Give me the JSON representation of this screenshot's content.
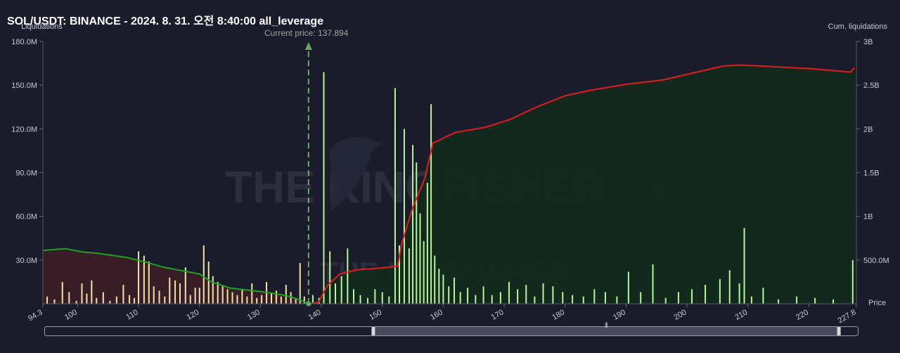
{
  "header": {
    "title": "SOL/USDT: BINANCE - 2024. 8. 31. 오전 8:40:00 all_leverage"
  },
  "watermark": {
    "brand": "THE KINGFISHER",
    "suffix": ".IO"
  },
  "colors": {
    "background": "#1b1c2b",
    "short_liq_bar": "#b7f59b",
    "long_liq_bar": "#f1e3a8",
    "cum_short_line": "#e01e1e",
    "cum_long_line": "#1fa31f",
    "cum_short_fill": "#132a1c",
    "cum_long_fill": "#3a1c26",
    "current_price_line": "#6aa86a"
  },
  "chart_data": {
    "type": "bar",
    "title": "SOL/USDT: BINANCE - 2024. 8. 31. 오전 8:40:00 all_leverage",
    "xlabel": "Price",
    "ylabel": "Liquidations",
    "y2label": "Cum. liquidations",
    "x_tick_labels": [
      "94.3",
      "100",
      "110",
      "120",
      "130",
      "140",
      "150",
      "160",
      "170",
      "180",
      "190",
      "200",
      "210",
      "220",
      "227.8"
    ],
    "xlim": [
      94.3,
      227.8
    ],
    "y_tick_labels": [
      "30.0M",
      "60.0M",
      "90.0M",
      "120.0M",
      "150.0M",
      "180.0M"
    ],
    "ylim": [
      0,
      180000000
    ],
    "y2_tick_labels": [
      "500.0M",
      "1B",
      "1.5B",
      "2B",
      "2.5B",
      "3B"
    ],
    "y2lim": [
      0,
      3000000000
    ],
    "current_price": {
      "label": "Current price: 137.894",
      "value": 137.894
    },
    "long_liquidations": {
      "x": [
        95,
        96.2,
        97.5,
        98.6,
        99.8,
        100.7,
        101.5,
        102.3,
        103.1,
        104.2,
        105.3,
        106.4,
        107.5,
        108.5,
        109.3,
        110.0,
        110.9,
        111.7,
        112.5,
        113.4,
        114.3,
        115.1,
        116.0,
        116.8,
        117.7,
        118.5,
        119.3,
        120.0,
        120.7,
        121.5,
        122.2,
        123.0,
        123.8,
        124.6,
        125.4,
        126.2,
        127.0,
        127.8,
        128.6,
        129.4,
        130.2,
        131.0,
        131.8,
        132.6,
        133.4,
        134.2,
        135.0,
        135.8,
        136.5,
        137.2
      ],
      "values": [
        5000000,
        3000000,
        15000000,
        8000000,
        2000000,
        14000000,
        7000000,
        16000000,
        4000000,
        8000000,
        2000000,
        5000000,
        13000000,
        6000000,
        4000000,
        36000000,
        33000000,
        29000000,
        12000000,
        9000000,
        5000000,
        18000000,
        16000000,
        14000000,
        25000000,
        6000000,
        11000000,
        11000000,
        40000000,
        29000000,
        19000000,
        15000000,
        12000000,
        10000000,
        8000000,
        6000000,
        10000000,
        5000000,
        14000000,
        4000000,
        6000000,
        15000000,
        7000000,
        9000000,
        5000000,
        13000000,
        8000000,
        4000000,
        28000000,
        5000000
      ]
    },
    "short_liquidations": {
      "x": [
        138.6,
        139.6,
        140.4,
        141.4,
        142.3,
        143.3,
        144.3,
        145.3,
        146.4,
        147.6,
        148.8,
        150.0,
        151.1,
        152.1,
        152.8,
        153.6,
        154.4,
        155.0,
        155.6,
        156.2,
        156.8,
        157.4,
        158.0,
        158.6,
        159.3,
        160.0,
        160.9,
        161.8,
        162.8,
        164.0,
        165.3,
        166.6,
        168.0,
        169.4,
        170.8,
        172.2,
        173.6,
        175.0,
        176.4,
        178.0,
        179.6,
        181.2,
        183.0,
        184.8,
        186.6,
        188.5,
        190.4,
        192.4,
        194.4,
        196.5,
        198.6,
        200.8,
        203.0,
        205.4,
        207.0,
        208.6,
        209.4,
        210.6,
        212.5,
        215.0,
        218.0,
        221.0,
        224.0,
        227.2
      ],
      "values": [
        6000000,
        4000000,
        159000000,
        36000000,
        14000000,
        19000000,
        38000000,
        10000000,
        6000000,
        4000000,
        10000000,
        8000000,
        5000000,
        148000000,
        40000000,
        120000000,
        38000000,
        109000000,
        97000000,
        62000000,
        43000000,
        83000000,
        137000000,
        33000000,
        24000000,
        20000000,
        12000000,
        18000000,
        8000000,
        11000000,
        6000000,
        12000000,
        6000000,
        8000000,
        15000000,
        10000000,
        13000000,
        5000000,
        14000000,
        12000000,
        8000000,
        6000000,
        5000000,
        10000000,
        8000000,
        5000000,
        22000000,
        8000000,
        27000000,
        4000000,
        8000000,
        10000000,
        13000000,
        17000000,
        23000000,
        14000000,
        52000000,
        5000000,
        11000000,
        3000000,
        5000000,
        4000000,
        3000000,
        30000000
      ]
    },
    "cumulative_long": {
      "x": [
        94.3,
        98,
        101,
        103,
        108,
        111,
        114,
        117,
        120,
        122,
        125,
        130,
        133,
        135,
        137.0,
        137.894
      ],
      "values": [
        610000000,
        630000000,
        590000000,
        580000000,
        530000000,
        480000000,
        420000000,
        380000000,
        340000000,
        250000000,
        180000000,
        140000000,
        110000000,
        80000000,
        30000000,
        0
      ]
    },
    "cumulative_short": {
      "x": [
        137.894,
        139.5,
        141,
        143,
        146,
        150,
        152.5,
        153.2,
        155,
        157,
        158.3,
        159,
        162,
        167,
        171,
        175,
        180,
        184,
        190,
        196,
        201,
        206,
        208.6,
        212,
        220,
        226.8,
        227.5
      ],
      "values": [
        0,
        15000000,
        210000000,
        340000000,
        390000000,
        410000000,
        430000000,
        690000000,
        1100000000,
        1440000000,
        1840000000,
        1860000000,
        1960000000,
        2020000000,
        2110000000,
        2240000000,
        2380000000,
        2440000000,
        2510000000,
        2560000000,
        2640000000,
        2720000000,
        2730000000,
        2720000000,
        2690000000,
        2650000000,
        2700000000
      ]
    },
    "grid": false,
    "legend": "none"
  }
}
